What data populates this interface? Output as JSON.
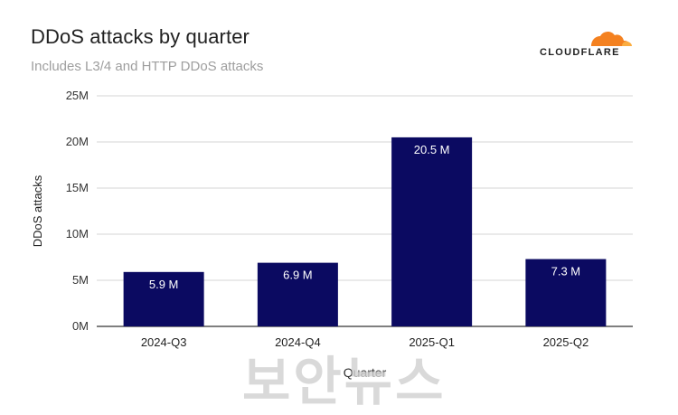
{
  "chart_data": {
    "type": "bar",
    "title": "DDoS attacks by quarter",
    "subtitle": "Includes L3/4 and HTTP DDoS attacks",
    "xlabel": "Quarter",
    "ylabel": "DDoS attacks",
    "categories": [
      "2024-Q3",
      "2024-Q4",
      "2025-Q1",
      "2025-Q2"
    ],
    "values": [
      5.9,
      6.9,
      20.5,
      7.3
    ],
    "value_labels": [
      "5.9 M",
      "6.9 M",
      "20.5 M",
      "7.3 M"
    ],
    "y_ticks": [
      0,
      5,
      10,
      15,
      20,
      25
    ],
    "y_tick_labels": [
      "0M",
      "5M",
      "10M",
      "15M",
      "20M",
      "25M"
    ],
    "ylim": [
      0,
      25
    ],
    "grid": true,
    "bar_color": "#0b0a61"
  },
  "brand": {
    "name": "CLOUDFLARE",
    "accent_color": "#f48120"
  },
  "watermark": "보안뉴스"
}
